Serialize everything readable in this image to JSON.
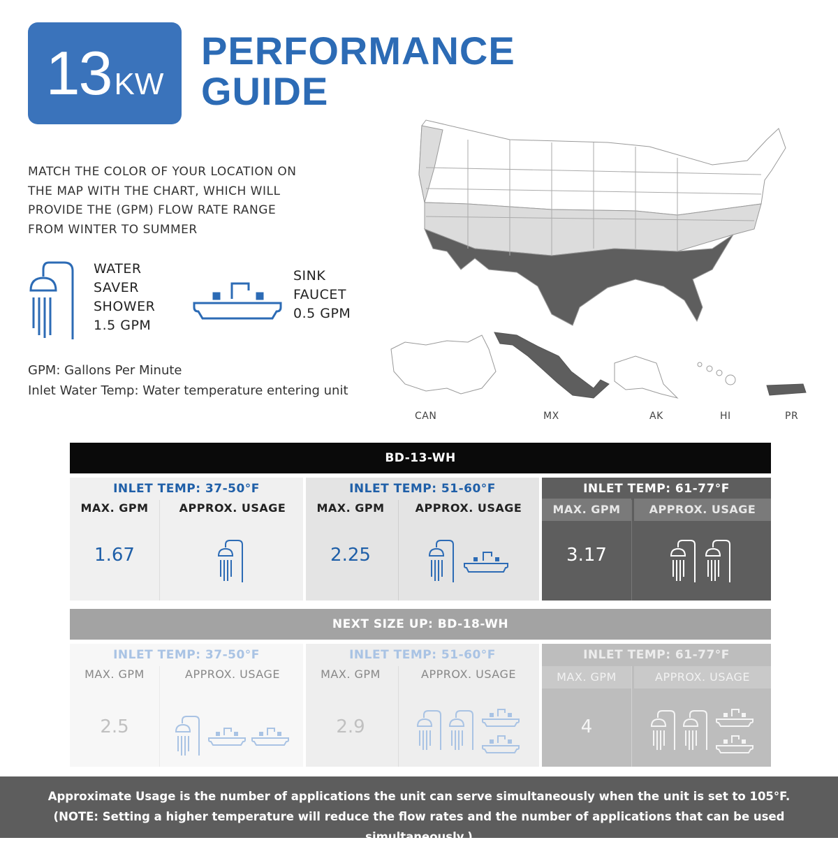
{
  "badge": {
    "number": "13",
    "unit": "KW"
  },
  "title": {
    "line1": "PERFORMANCE",
    "line2": "GUIDE"
  },
  "intro": {
    "line1": "MATCH THE COLOR OF YOUR LOCATION ON",
    "line2": "THE MAP WITH THE CHART, WHICH WILL",
    "line3": "PROVIDE THE  (GPM) FLOW RATE RANGE",
    "line4": "FROM WINTER TO SUMMER"
  },
  "legend": {
    "shower": {
      "line1": "WATER",
      "line2": "SAVER",
      "line3": "SHOWER",
      "line4": "1.5 GPM",
      "icon": "shower-icon"
    },
    "sink": {
      "line1": "SINK",
      "line2": "FAUCET",
      "line3": "0.5 GPM",
      "icon": "sink-faucet-icon"
    }
  },
  "definitions": {
    "gpm": "GPM: Gallons Per Minute",
    "inlet": "Inlet Water Temp: Water temperature entering unit"
  },
  "map": {
    "labels": [
      "CAN",
      "MX",
      "AK",
      "HI",
      "PR"
    ]
  },
  "colors": {
    "blue": "#3a73bb",
    "light_zone": "#f0f0f0",
    "mid_zone": "#dddddd",
    "dark_zone": "#5e5e5e"
  },
  "tables": [
    {
      "header": "BD-13-WH",
      "panels": [
        {
          "inlet": "INLET TEMP: 37-50°F",
          "max_label": "MAX. GPM",
          "usage_label": "APPROX. USAGE",
          "gpm": "1.67",
          "usage": [
            "shower"
          ]
        },
        {
          "inlet": "INLET TEMP: 51-60°F",
          "max_label": "MAX. GPM",
          "usage_label": "APPROX. USAGE",
          "gpm": "2.25",
          "usage": [
            "shower",
            "sink"
          ]
        },
        {
          "inlet": "INLET TEMP: 61-77°F",
          "max_label": "MAX. GPM",
          "usage_label": "APPROX. USAGE",
          "gpm": "3.17",
          "usage": [
            "shower",
            "shower"
          ]
        }
      ]
    },
    {
      "header": "NEXT SIZE UP: BD-18-WH",
      "panels": [
        {
          "inlet": "INLET TEMP: 37-50°F",
          "max_label": "MAX. GPM",
          "usage_label": "APPROX. USAGE",
          "gpm": "2.5",
          "usage": [
            "shower",
            "sink",
            "sink"
          ]
        },
        {
          "inlet": "INLET TEMP: 51-60°F",
          "max_label": "MAX. GPM",
          "usage_label": "APPROX. USAGE",
          "gpm": "2.9",
          "usage": [
            "shower",
            "shower",
            "sink",
            "sink"
          ]
        },
        {
          "inlet": "INLET TEMP: 61-77°F",
          "max_label": "MAX. GPM",
          "usage_label": "APPROX. USAGE",
          "gpm": "4",
          "usage": [
            "shower",
            "shower",
            "sink",
            "sink"
          ]
        }
      ]
    }
  ],
  "footer": {
    "line1": "Approximate Usage is the number of applications the unit can serve simultaneously when the unit is set to 105°F.",
    "line2": "(NOTE:  Setting a higher temperature will reduce the flow rates and the number of applications that can be used simultaneously.)"
  }
}
